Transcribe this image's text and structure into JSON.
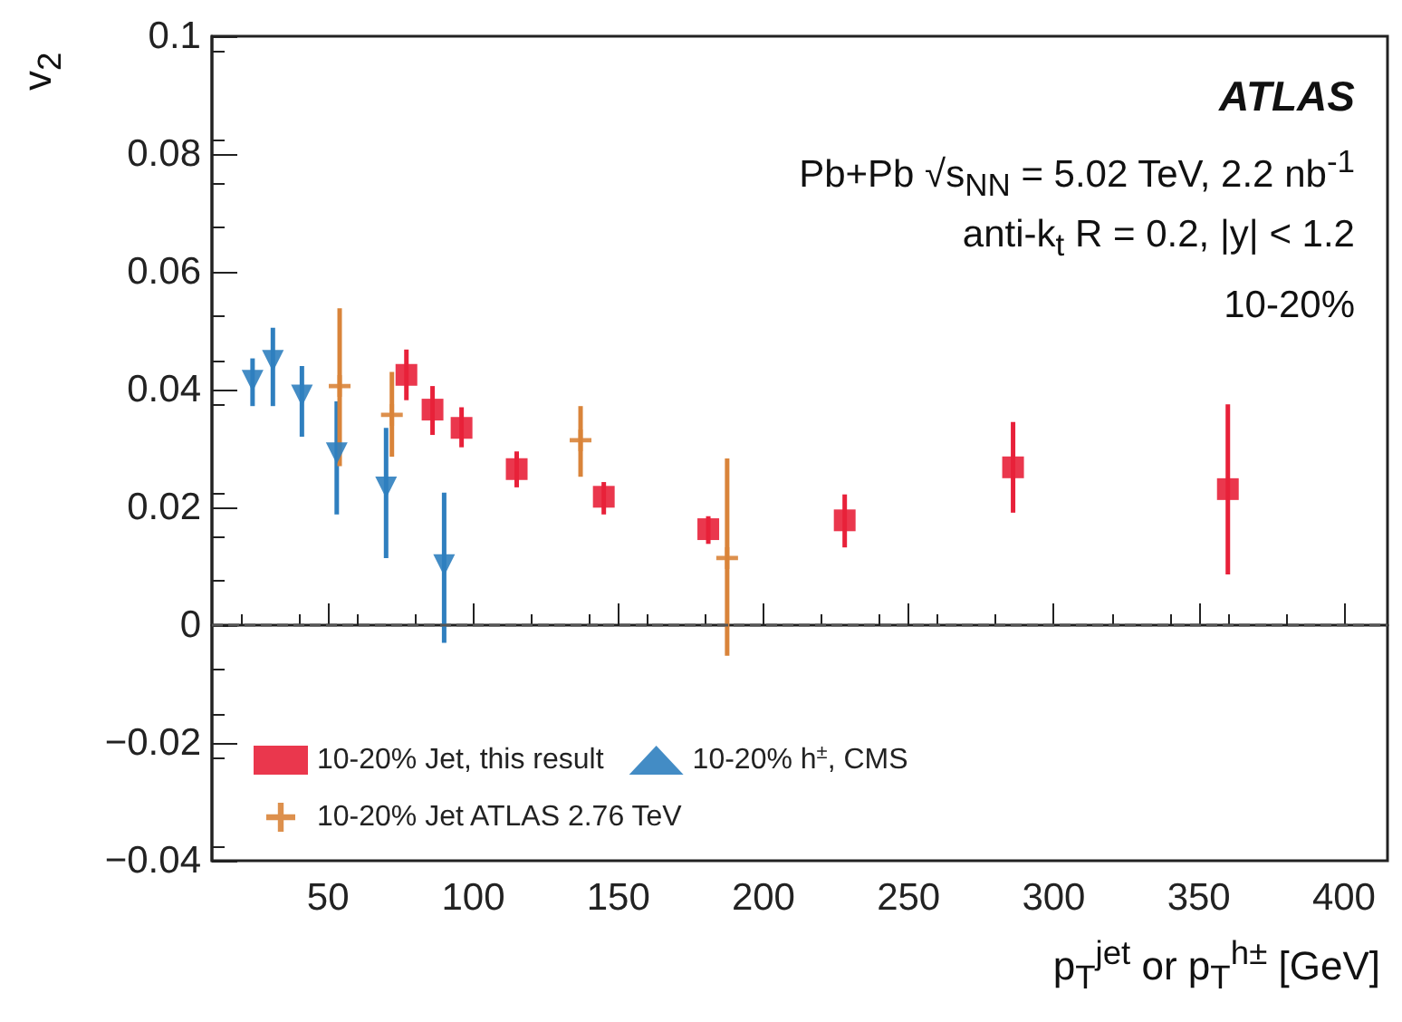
{
  "chart_data": {
    "type": "scatter",
    "xlabel": "p$_{T}$$^{jet}$ or p$_{T}$$^{h±}$ [GeV]",
    "ylabel": "v$_{2}$",
    "annotations": [
      "ATLAS",
      "Pb+Pb √s$_{NN}$ = 5.02 TeV, 2.2 nb$^{-1}$",
      "anti-k$_{t}$ R = 0.2, |y| < 1.2",
      "10-20%"
    ],
    "xlim": [
      10,
      415
    ],
    "xticks": [
      50,
      100,
      150,
      200,
      250,
      300,
      350,
      400
    ],
    "ylim": [
      -0.04,
      0.1
    ],
    "yticks": [
      -0.04,
      -0.02,
      0,
      0.02,
      0.04,
      0.06,
      0.08,
      0.1
    ],
    "grid": false,
    "legend": "bottom left",
    "ref_lines": [
      {
        "axis": "y",
        "value": 0,
        "line_style": "dashed",
        "color": "#555555"
      }
    ],
    "series": [
      {
        "name": "10-20% Jet, this result",
        "color": "#e8213a",
        "marker": "square",
        "x": [
          77,
          86,
          96,
          115,
          145,
          181,
          228,
          286,
          360
        ],
        "values": [
          0.0425,
          0.0366,
          0.0335,
          0.0265,
          0.0218,
          0.0163,
          0.0178,
          0.0268,
          0.0231
        ],
        "errors": [
          [
            0.0382,
            0.0468
          ],
          [
            0.0323,
            0.0406
          ],
          [
            0.0302,
            0.037
          ],
          [
            0.0234,
            0.0295
          ],
          [
            0.0188,
            0.0243
          ],
          [
            0.0138,
            0.0185
          ],
          [
            0.0132,
            0.0222
          ],
          [
            0.0191,
            0.0345
          ],
          [
            0.0086,
            0.0375
          ]
        ]
      },
      {
        "name": "10-20% h$^{±}$, CMS",
        "color": "#2f7fbf",
        "marker": "triangle",
        "x": [
          24,
          31,
          41,
          53,
          70,
          90
        ],
        "values": [
          0.0415,
          0.0449,
          0.039,
          0.0292,
          0.0234,
          0.0102
        ],
        "errors": [
          [
            0.0372,
            0.0453
          ],
          [
            0.0372,
            0.0505
          ],
          [
            0.032,
            0.044
          ],
          [
            0.0188,
            0.038
          ],
          [
            0.0114,
            0.0335
          ],
          [
            -0.003,
            0.0225
          ]
        ]
      },
      {
        "name": "10-20% Jet ATLAS 2.76 TeV",
        "color": "#d9843a",
        "marker": "cross",
        "x": [
          54,
          72,
          137,
          187.5
        ],
        "values": [
          0.0406,
          0.0357,
          0.0314,
          0.0114
        ],
        "errors": [
          [
            0.027,
            0.0538
          ],
          [
            0.0286,
            0.043
          ],
          [
            0.0252,
            0.0372
          ],
          [
            -0.0052,
            0.0283
          ]
        ]
      }
    ]
  }
}
